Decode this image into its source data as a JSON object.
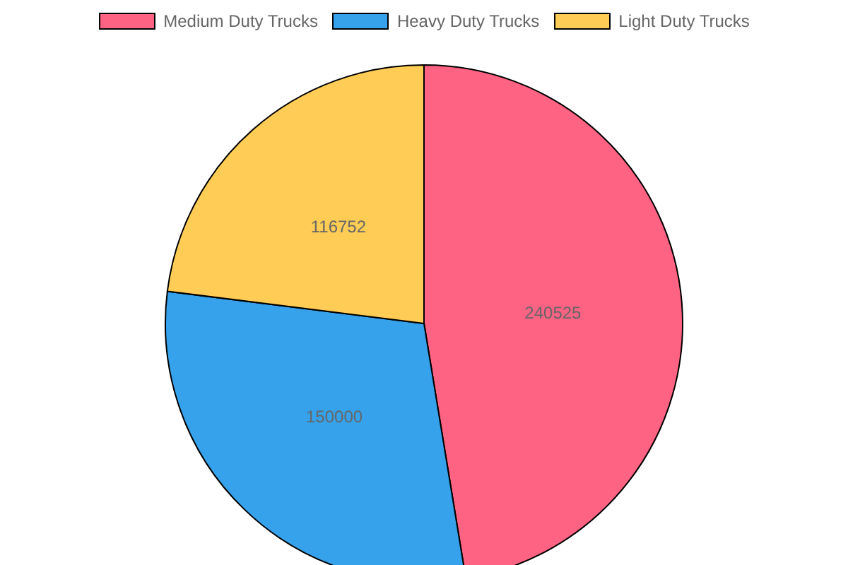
{
  "chart_data": {
    "type": "pie",
    "categories": [
      "Medium Duty Trucks",
      "Heavy Duty Trucks",
      "Light Duty Trucks"
    ],
    "values": [
      240525,
      150000,
      116752
    ],
    "colors": [
      "#ff6384",
      "#36a2eb",
      "#ffcd56"
    ],
    "data_labels": true,
    "legend": "top"
  }
}
